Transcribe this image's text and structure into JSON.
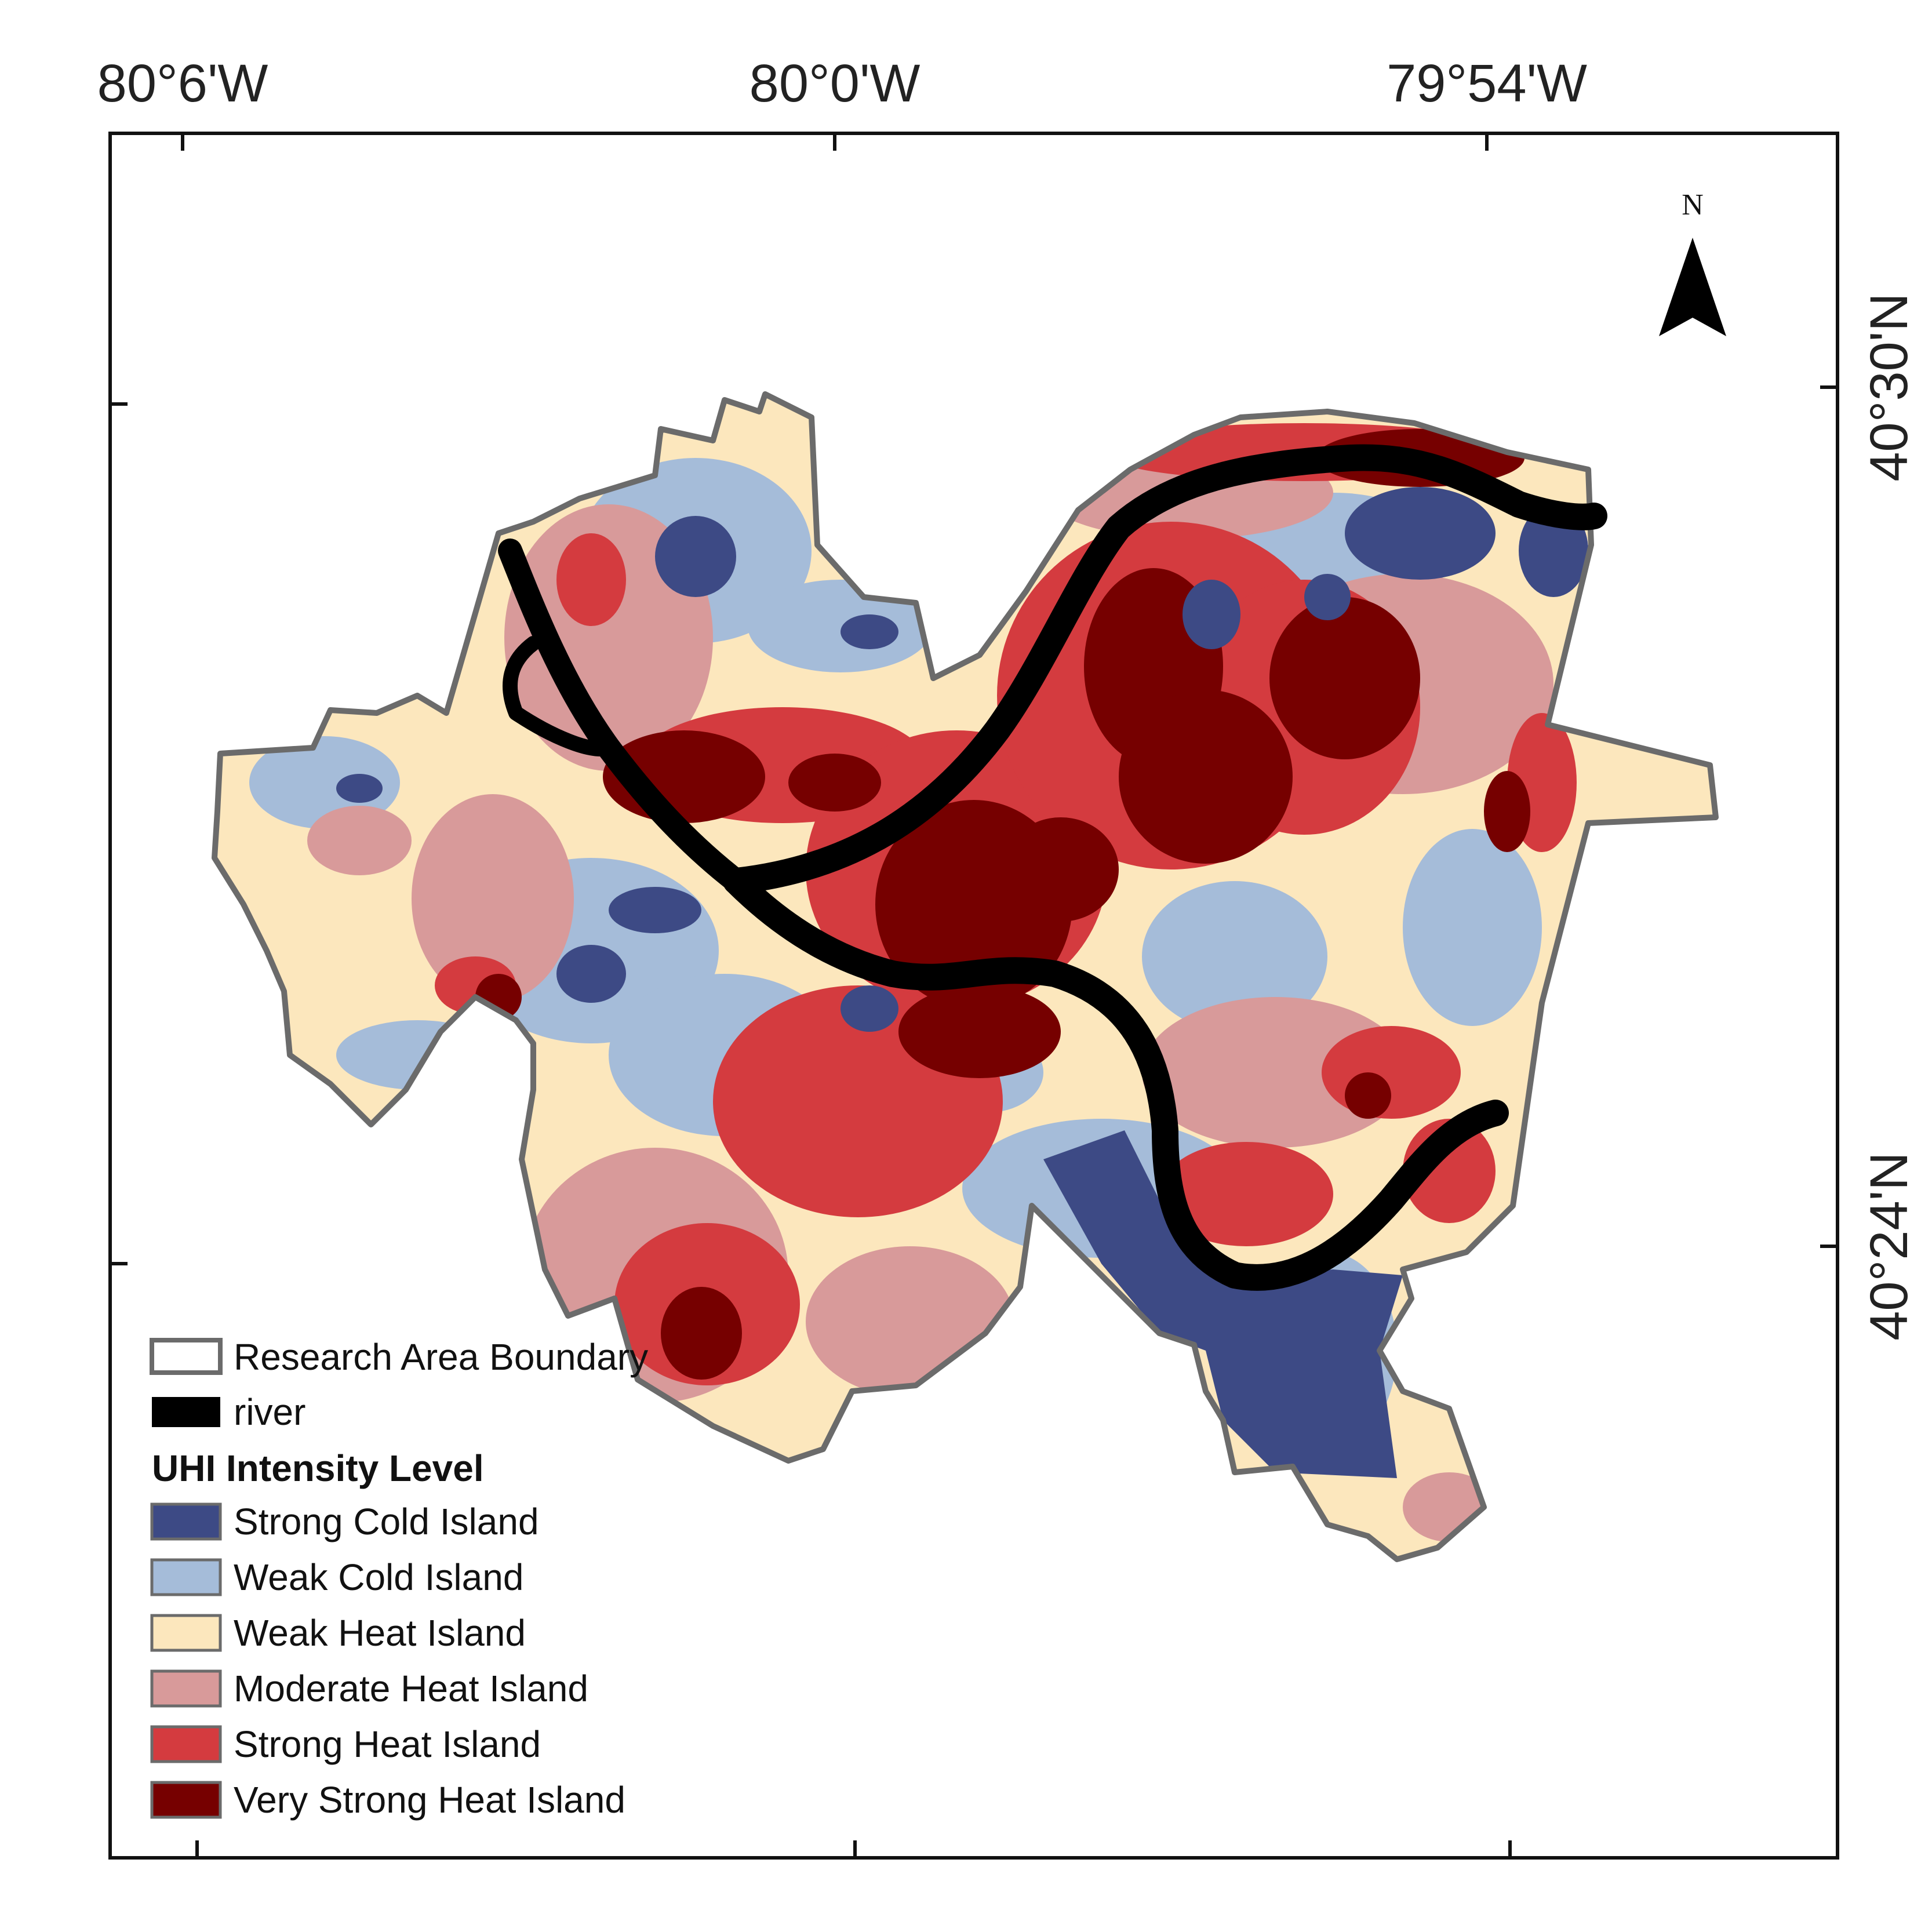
{
  "map": {
    "longitude_ticks": [
      "80°6'W",
      "80°0'W",
      "79°54'W"
    ],
    "latitude_ticks": [
      "40°30'N",
      "40°24'N"
    ],
    "north_arrow": "N"
  },
  "legend": {
    "boundary_label": "Research Area Boundary",
    "river_label": "river",
    "title": "UHI Intensity Level",
    "classes": [
      {
        "label": "Strong Cold Island",
        "color": "#3d4a85"
      },
      {
        "label": "Weak Cold Island",
        "color": "#a5bcd9"
      },
      {
        "label": "Weak Heat Island",
        "color": "#fce7bd"
      },
      {
        "label": "Moderate Heat Island",
        "color": "#d89a9a"
      },
      {
        "label": "Strong Heat Island",
        "color": "#d43b3f"
      },
      {
        "label": "Very Strong Heat Island",
        "color": "#760000"
      }
    ]
  },
  "colors": {
    "boundary": "#6b6b6b",
    "river": "#000000",
    "frame": "#111111"
  }
}
